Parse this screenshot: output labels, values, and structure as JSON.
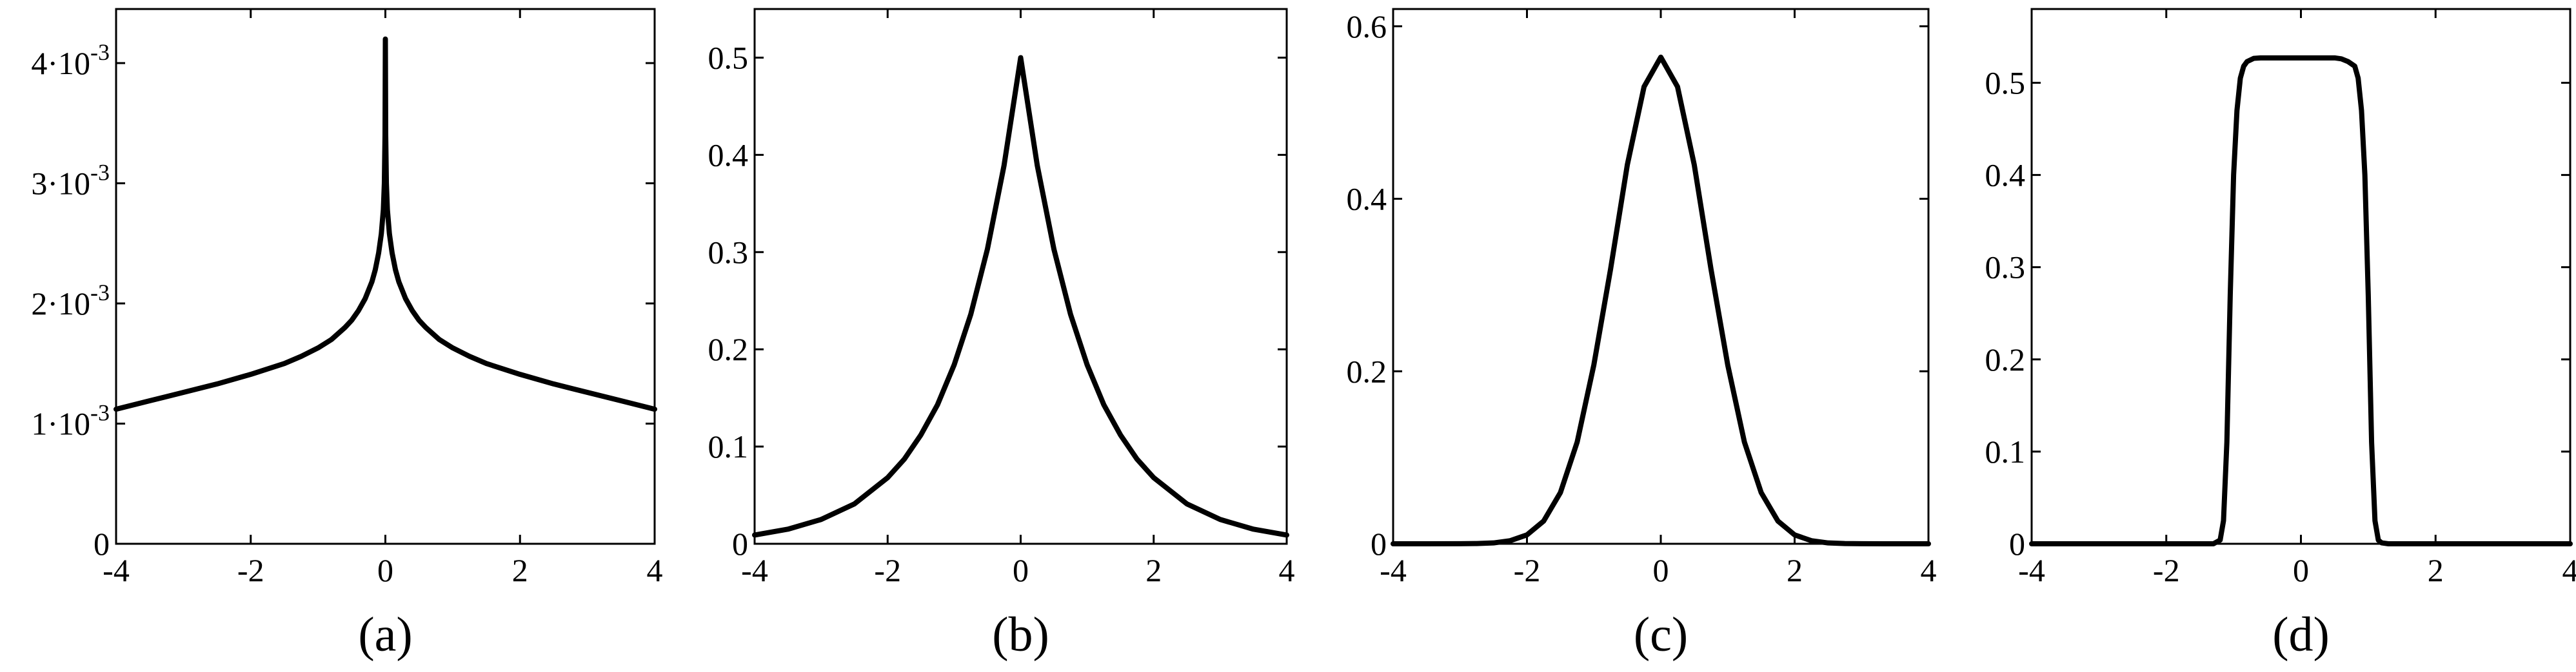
{
  "chart_data": [
    {
      "type": "line",
      "panel_label": "(a)",
      "xlim": [
        -4,
        4
      ],
      "ylim": [
        0,
        0.00445
      ],
      "x_ticks": [
        -4,
        -2,
        0,
        2,
        4
      ],
      "x_tick_labels": [
        "-4",
        "-2",
        "0",
        "2",
        "4"
      ],
      "y_ticks": [
        0,
        0.001,
        0.002,
        0.003,
        0.004
      ],
      "y_tick_labels": [
        {
          "mant": "0",
          "exp": ""
        },
        {
          "mant": "1·10",
          "exp": "-3"
        },
        {
          "mant": "2·10",
          "exp": "-3"
        },
        {
          "mant": "3·10",
          "exp": "-3"
        },
        {
          "mant": "4·10",
          "exp": "-3"
        }
      ],
      "grid": false,
      "series": [
        {
          "x": [
            -4,
            -3.5,
            -3,
            -2.5,
            -2,
            -1.5,
            -1.25,
            -1,
            -0.8,
            -0.6,
            -0.5,
            -0.4,
            -0.3,
            -0.2,
            -0.15,
            -0.1,
            -0.06,
            -0.03,
            -0.015,
            -0.005,
            0,
            0.005,
            0.015,
            0.03,
            0.06,
            0.1,
            0.15,
            0.2,
            0.3,
            0.4,
            0.5,
            0.6,
            0.8,
            1,
            1.25,
            1.5,
            2,
            2.5,
            3,
            3.5,
            4
          ],
          "y": [
            0.00112,
            0.00119,
            0.00126,
            0.00133,
            0.00141,
            0.0015,
            0.00156,
            0.00163,
            0.0017,
            0.0018,
            0.00186,
            0.00194,
            0.00204,
            0.00218,
            0.00228,
            0.00242,
            0.00258,
            0.00278,
            0.003,
            0.0034,
            0.0042,
            0.0034,
            0.003,
            0.00278,
            0.00258,
            0.00242,
            0.00228,
            0.00218,
            0.00204,
            0.00194,
            0.00186,
            0.0018,
            0.0017,
            0.00163,
            0.00156,
            0.0015,
            0.00141,
            0.00133,
            0.00126,
            0.00119,
            0.00112
          ]
        }
      ]
    },
    {
      "type": "line",
      "panel_label": "(b)",
      "xlim": [
        -4,
        4
      ],
      "ylim": [
        0,
        0.55
      ],
      "x_ticks": [
        -4,
        -2,
        0,
        2,
        4
      ],
      "x_tick_labels": [
        "-4",
        "-2",
        "0",
        "2",
        "4"
      ],
      "y_ticks": [
        0,
        0.1,
        0.2,
        0.3,
        0.4,
        0.5
      ],
      "y_tick_labels": [
        {
          "mant": "0",
          "exp": ""
        },
        {
          "mant": "0.1",
          "exp": ""
        },
        {
          "mant": "0.2",
          "exp": ""
        },
        {
          "mant": "0.3",
          "exp": ""
        },
        {
          "mant": "0.4",
          "exp": ""
        },
        {
          "mant": "0.5",
          "exp": ""
        }
      ],
      "grid": false,
      "series": [
        {
          "x": [
            -4,
            -3.5,
            -3,
            -2.5,
            -2,
            -1.75,
            -1.5,
            -1.25,
            -1,
            -0.75,
            -0.5,
            -0.25,
            0,
            0.25,
            0.5,
            0.75,
            1,
            1.25,
            1.5,
            1.75,
            2,
            2.5,
            3,
            3.5,
            4
          ],
          "y": [
            0.009,
            0.015,
            0.025,
            0.041,
            0.068,
            0.087,
            0.112,
            0.143,
            0.184,
            0.236,
            0.303,
            0.389,
            0.5,
            0.389,
            0.303,
            0.236,
            0.184,
            0.143,
            0.112,
            0.087,
            0.068,
            0.041,
            0.025,
            0.015,
            0.009
          ]
        }
      ]
    },
    {
      "type": "line",
      "panel_label": "(c)",
      "xlim": [
        -4,
        4
      ],
      "ylim": [
        0,
        0.62
      ],
      "x_ticks": [
        -4,
        -2,
        0,
        2,
        4
      ],
      "x_tick_labels": [
        "-4",
        "-2",
        "0",
        "2",
        "4"
      ],
      "y_ticks": [
        0,
        0.2,
        0.4,
        0.6
      ],
      "y_tick_labels": [
        {
          "mant": "0",
          "exp": ""
        },
        {
          "mant": "0.2",
          "exp": ""
        },
        {
          "mant": "0.4",
          "exp": ""
        },
        {
          "mant": "0.6",
          "exp": ""
        }
      ],
      "grid": false,
      "series": [
        {
          "x": [
            -4,
            -3.5,
            -3,
            -2.75,
            -2.5,
            -2.25,
            -2,
            -1.75,
            -1.5,
            -1.25,
            -1,
            -0.75,
            -0.5,
            -0.25,
            0,
            0.25,
            0.5,
            0.75,
            1,
            1.25,
            1.5,
            1.75,
            2,
            2.25,
            2.5,
            2.75,
            3,
            3.5,
            4
          ],
          "y": [
            0,
            0,
            0.0001,
            0.0003,
            0.001,
            0.0036,
            0.0103,
            0.0264,
            0.0594,
            0.1178,
            0.2075,
            0.3186,
            0.4394,
            0.5299,
            0.5642,
            0.5299,
            0.4394,
            0.3186,
            0.2075,
            0.1178,
            0.0594,
            0.0264,
            0.0103,
            0.0036,
            0.001,
            0.0003,
            0.0001,
            0,
            0
          ]
        }
      ]
    },
    {
      "type": "line",
      "panel_label": "(d)",
      "xlim": [
        -4,
        4
      ],
      "ylim": [
        0,
        0.58
      ],
      "x_ticks": [
        -4,
        -2,
        0,
        2,
        4
      ],
      "x_tick_labels": [
        "-4",
        "-2",
        "0",
        "2",
        "4"
      ],
      "y_ticks": [
        0,
        0.1,
        0.2,
        0.3,
        0.4,
        0.5
      ],
      "y_tick_labels": [
        {
          "mant": "0",
          "exp": ""
        },
        {
          "mant": "0.1",
          "exp": ""
        },
        {
          "mant": "0.2",
          "exp": ""
        },
        {
          "mant": "0.3",
          "exp": ""
        },
        {
          "mant": "0.4",
          "exp": ""
        },
        {
          "mant": "0.5",
          "exp": ""
        }
      ],
      "grid": false,
      "series": [
        {
          "x": [
            -4,
            -2,
            -1.3,
            -1.2,
            -1.15,
            -1.1,
            -1.05,
            -1.0,
            -0.95,
            -0.9,
            -0.85,
            -0.8,
            -0.7,
            -0.6,
            -0.5,
            0,
            0.5,
            0.6,
            0.7,
            0.8,
            0.85,
            0.9,
            0.95,
            1.0,
            1.05,
            1.1,
            1.15,
            1.2,
            1.3,
            2,
            4
          ],
          "y": [
            0,
            0,
            0,
            0.004,
            0.025,
            0.11,
            0.27,
            0.4,
            0.47,
            0.505,
            0.518,
            0.523,
            0.5265,
            0.527,
            0.527,
            0.527,
            0.527,
            0.526,
            0.523,
            0.518,
            0.505,
            0.47,
            0.4,
            0.27,
            0.11,
            0.025,
            0.004,
            0.001,
            0,
            0,
            0
          ]
        }
      ]
    }
  ]
}
